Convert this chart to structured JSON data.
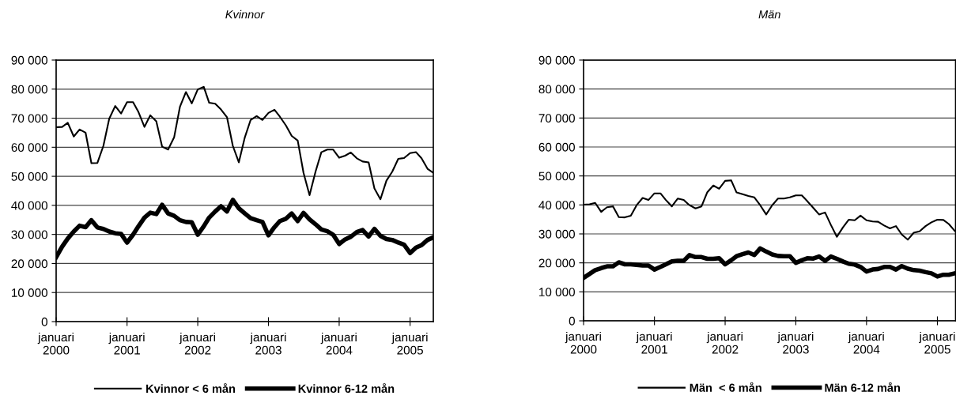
{
  "chart_data": [
    {
      "type": "line",
      "title": "Kvinnor",
      "x": [
        "2000-01",
        "2000-02",
        "2000-03",
        "2000-04",
        "2000-05",
        "2000-06",
        "2000-07",
        "2000-08",
        "2000-09",
        "2000-10",
        "2000-11",
        "2000-12",
        "2001-01",
        "2001-02",
        "2001-03",
        "2001-04",
        "2001-05",
        "2001-06",
        "2001-07",
        "2001-08",
        "2001-09",
        "2001-10",
        "2001-11",
        "2001-12",
        "2002-01",
        "2002-02",
        "2002-03",
        "2002-04",
        "2002-05",
        "2002-06",
        "2002-07",
        "2002-08",
        "2002-09",
        "2002-10",
        "2002-11",
        "2002-12",
        "2003-01",
        "2003-02",
        "2003-03",
        "2003-04",
        "2003-05",
        "2003-06",
        "2003-07",
        "2003-08",
        "2003-09",
        "2003-10",
        "2003-11",
        "2003-12",
        "2004-01",
        "2004-02",
        "2004-03",
        "2004-04",
        "2004-05",
        "2004-06",
        "2004-07",
        "2004-08",
        "2004-09",
        "2004-10",
        "2004-11",
        "2004-12",
        "2005-01",
        "2005-02",
        "2005-03",
        "2005-04",
        "2005-05"
      ],
      "xlim": [
        "2000-01-01",
        "2005-05-01"
      ],
      "ylim": [
        0,
        90000
      ],
      "xticks": [
        {
          "value": "2000-01-01",
          "label": "januari\n2000"
        },
        {
          "value": "2001-01-01",
          "label": "januari\n2001"
        },
        {
          "value": "2002-01-01",
          "label": "januari\n2002"
        },
        {
          "value": "2003-01-01",
          "label": "januari\n2003"
        },
        {
          "value": "2004-01-01",
          "label": "januari\n2004"
        },
        {
          "value": "2005-01-01",
          "label": "januari\n2005"
        }
      ],
      "yticks": [
        {
          "value": 0,
          "label": "0"
        },
        {
          "value": 10000,
          "label": "10 000"
        },
        {
          "value": 20000,
          "label": "20 000"
        },
        {
          "value": 30000,
          "label": "30 000"
        },
        {
          "value": 40000,
          "label": "40 000"
        },
        {
          "value": 50000,
          "label": "50 000"
        },
        {
          "value": 60000,
          "label": "60 000"
        },
        {
          "value": 70000,
          "label": "70 000"
        },
        {
          "value": 80000,
          "label": "80 000"
        },
        {
          "value": 90000,
          "label": "90 000"
        }
      ],
      "grid": "y",
      "legend": "bottom",
      "marker": "none",
      "line_style": "solid",
      "series": [
        {
          "name": "Kvinnor < 6 mån",
          "color": "#000000",
          "values": [
            66900,
            67000,
            68400,
            63700,
            66100,
            65000,
            54500,
            54600,
            60500,
            69800,
            74200,
            71600,
            75500,
            75500,
            72100,
            67000,
            71000,
            68900,
            60200,
            59200,
            63400,
            73900,
            79000,
            75100,
            79900,
            80800,
            75300,
            75000,
            73000,
            70300,
            60500,
            54800,
            63400,
            69400,
            70700,
            69400,
            71800,
            72900,
            70500,
            67500,
            63900,
            62300,
            51200,
            43500,
            51600,
            58300,
            59200,
            59200,
            56400,
            57100,
            58200,
            56200,
            55100,
            54800,
            45800,
            42100,
            48500,
            51600,
            56000,
            56300,
            58000,
            58300,
            56200,
            52600,
            51200
          ]
        },
        {
          "name": "Kvinnor 6-12 mån",
          "color": "#000000",
          "values": [
            22200,
            25800,
            28600,
            31000,
            33000,
            32500,
            34900,
            32400,
            31900,
            31000,
            30400,
            30200,
            27200,
            29900,
            32800,
            35800,
            37500,
            37000,
            40200,
            37200,
            36400,
            34900,
            34300,
            34200,
            29900,
            32800,
            35800,
            37900,
            39700,
            37900,
            41900,
            39000,
            37200,
            35600,
            34900,
            34300,
            29700,
            32500,
            34600,
            35400,
            37200,
            34600,
            37400,
            35200,
            33500,
            31700,
            31100,
            29900,
            26700,
            28300,
            29200,
            30800,
            31500,
            29300,
            31900,
            29500,
            28400,
            28100,
            27200,
            26500,
            23600,
            25500,
            26300,
            28100,
            29000
          ]
        }
      ]
    },
    {
      "type": "line",
      "title": "Män",
      "x": [
        "2000-01",
        "2000-02",
        "2000-03",
        "2000-04",
        "2000-05",
        "2000-06",
        "2000-07",
        "2000-08",
        "2000-09",
        "2000-10",
        "2000-11",
        "2000-12",
        "2001-01",
        "2001-02",
        "2001-03",
        "2001-04",
        "2001-05",
        "2001-06",
        "2001-07",
        "2001-08",
        "2001-09",
        "2001-10",
        "2001-11",
        "2001-12",
        "2002-01",
        "2002-02",
        "2002-03",
        "2002-04",
        "2002-05",
        "2002-06",
        "2002-07",
        "2002-08",
        "2002-09",
        "2002-10",
        "2002-11",
        "2002-12",
        "2003-01",
        "2003-02",
        "2003-03",
        "2003-04",
        "2003-05",
        "2003-06",
        "2003-07",
        "2003-08",
        "2003-09",
        "2003-10",
        "2003-11",
        "2003-12",
        "2004-01",
        "2004-02",
        "2004-03",
        "2004-04",
        "2004-05",
        "2004-06",
        "2004-07",
        "2004-08",
        "2004-09",
        "2004-10",
        "2004-11",
        "2004-12",
        "2005-01",
        "2005-02",
        "2005-03",
        "2005-04"
      ],
      "xlim": [
        "2000-01-01",
        "2005-04-05"
      ],
      "ylim": [
        0,
        90000
      ],
      "xticks": [
        {
          "value": "2000-01-01",
          "label": "januari\n2000"
        },
        {
          "value": "2001-01-01",
          "label": "januari\n2001"
        },
        {
          "value": "2002-01-01",
          "label": "januari\n2002"
        },
        {
          "value": "2003-01-01",
          "label": "januari\n2003"
        },
        {
          "value": "2004-01-01",
          "label": "januari\n2004"
        },
        {
          "value": "2005-01-01",
          "label": "januari\n2005"
        }
      ],
      "yticks": [
        {
          "value": 0,
          "label": "0"
        },
        {
          "value": 10000,
          "label": "10 000"
        },
        {
          "value": 20000,
          "label": "20 000"
        },
        {
          "value": 30000,
          "label": "30 000"
        },
        {
          "value": 40000,
          "label": "40 000"
        },
        {
          "value": 50000,
          "label": "50 000"
        },
        {
          "value": 60000,
          "label": "60 000"
        },
        {
          "value": 70000,
          "label": "70 000"
        },
        {
          "value": 80000,
          "label": "80 000"
        },
        {
          "value": 90000,
          "label": "90 000"
        }
      ],
      "grid": "y",
      "legend": "bottom",
      "marker": "none",
      "line_style": "solid",
      "series": [
        {
          "name": "Män  < 6 mån",
          "color": "#000000",
          "values": [
            40100,
            40200,
            40700,
            37600,
            39200,
            39500,
            35800,
            35700,
            36300,
            39900,
            42400,
            41700,
            44000,
            44000,
            41700,
            39500,
            42200,
            41700,
            39900,
            38800,
            39500,
            44400,
            46700,
            45600,
            48300,
            48500,
            44300,
            43700,
            43100,
            42600,
            39900,
            36700,
            39900,
            42200,
            42200,
            42600,
            43300,
            43300,
            41300,
            39000,
            36700,
            37400,
            33100,
            29000,
            32200,
            34900,
            34700,
            36300,
            34700,
            34300,
            34200,
            32900,
            31900,
            32700,
            29800,
            28000,
            30400,
            30900,
            32700,
            34000,
            34900,
            34800,
            33400,
            31000
          ]
        },
        {
          "name": "Män 6-12 mån",
          "color": "#000000",
          "values": [
            14800,
            16200,
            17500,
            18200,
            18800,
            18800,
            20200,
            19500,
            19500,
            19300,
            19100,
            19100,
            17700,
            18600,
            19500,
            20500,
            20700,
            20700,
            22700,
            22000,
            22000,
            21400,
            21400,
            21600,
            19500,
            20900,
            22300,
            23000,
            23600,
            22700,
            25000,
            23900,
            22900,
            22400,
            22300,
            22300,
            20000,
            20900,
            21600,
            21500,
            22200,
            20700,
            22200,
            21400,
            20500,
            19700,
            19400,
            18600,
            17000,
            17700,
            17900,
            18600,
            18600,
            17700,
            18900,
            18000,
            17500,
            17300,
            16800,
            16400,
            15300,
            15900,
            15900,
            16400
          ]
        }
      ]
    }
  ]
}
